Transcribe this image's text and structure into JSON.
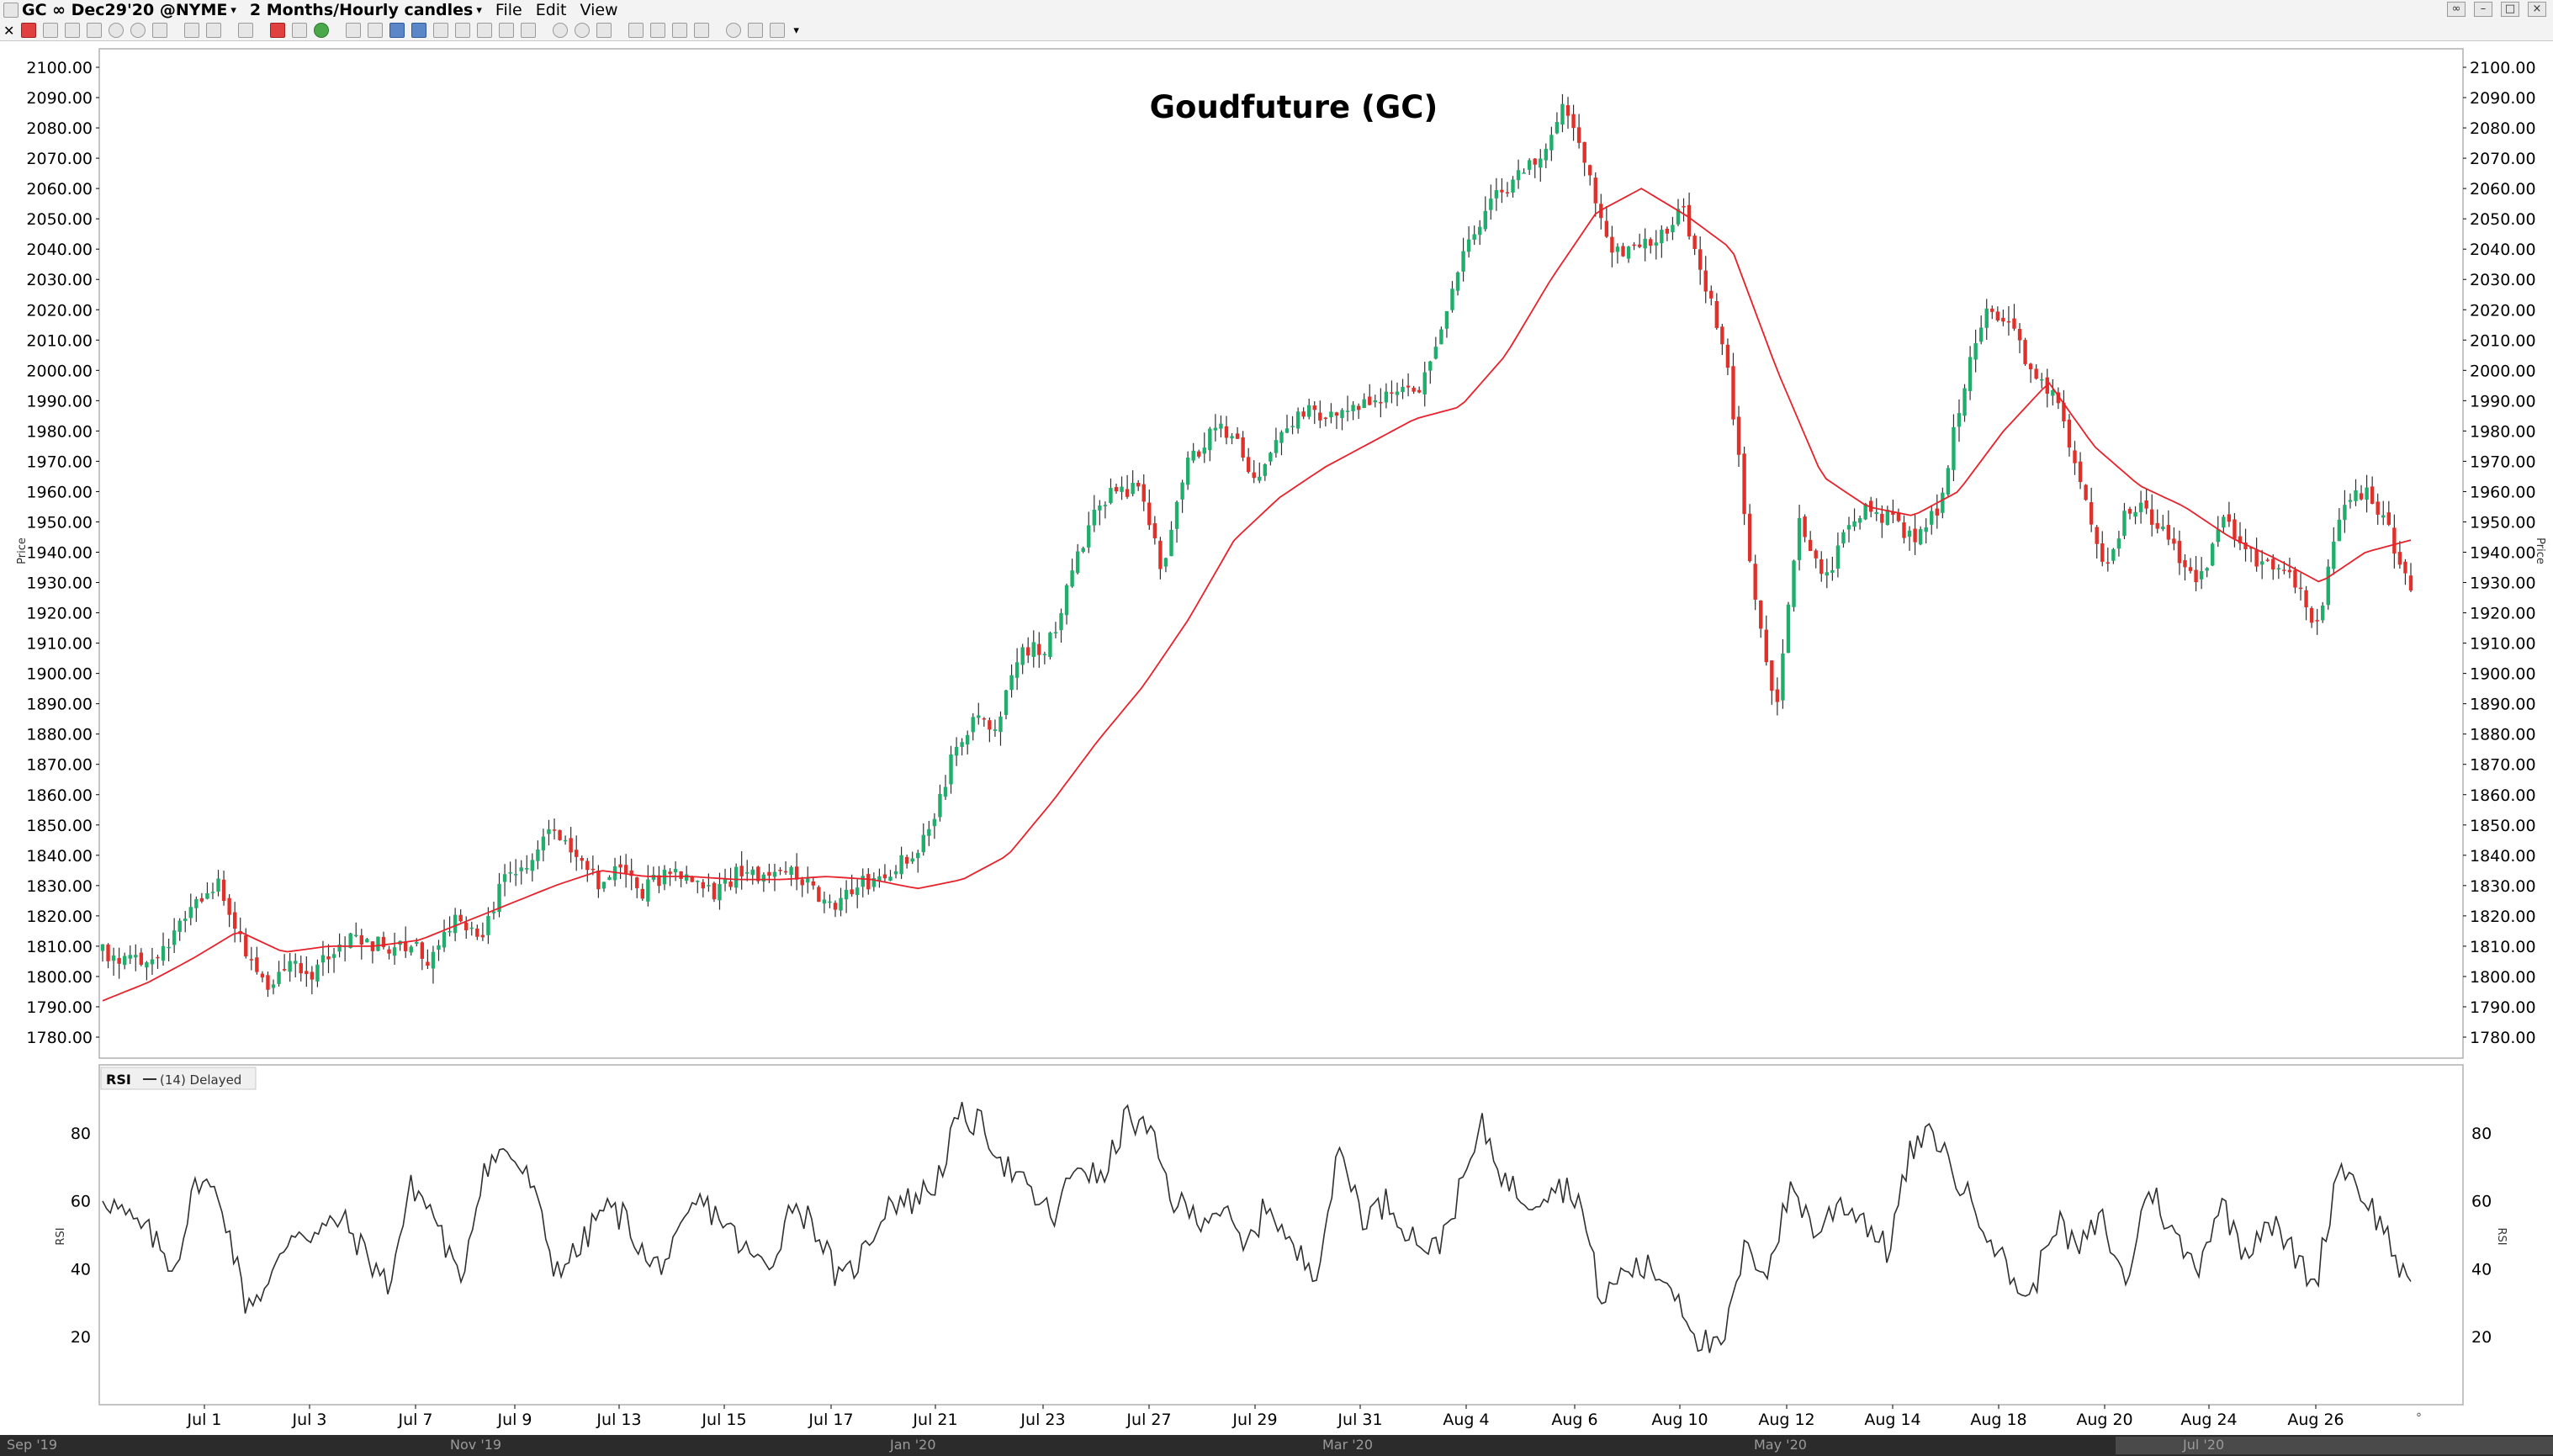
{
  "toolbar": {
    "symbol": "GC ∞ Dec29'20 @NYME",
    "interval": "2 Months/Hourly candles",
    "menu": [
      "File",
      "Edit",
      "View"
    ]
  },
  "footer_timeline": [
    "Sep '19",
    "Nov '19",
    "Jan '20",
    "Mar '20",
    "May '20",
    "Jul '20"
  ],
  "chart_data": [
    {
      "type": "candlestick",
      "title": "Goudfuture (GC)",
      "ylabel": "Price",
      "ylim": [
        1770,
        2105
      ],
      "yticks": [
        1780,
        1790,
        1800,
        1810,
        1820,
        1830,
        1840,
        1850,
        1860,
        1870,
        1880,
        1890,
        1900,
        1910,
        1920,
        1930,
        1940,
        1950,
        1960,
        1970,
        1980,
        1990,
        2000,
        2010,
        2020,
        2030,
        2040,
        2050,
        2060,
        2070,
        2080,
        2090,
        2100
      ],
      "x_tick_labels": [
        "Jul 1",
        "Jul 3",
        "Jul 7",
        "Jul 9",
        "Jul 13",
        "Jul 15",
        "Jul 17",
        "Jul 21",
        "Jul 23",
        "Jul 27",
        "Jul 29",
        "Jul 31",
        "Aug 4",
        "Aug 6",
        "Aug 10",
        "Aug 12",
        "Aug 14",
        "Aug 18",
        "Aug 20",
        "Aug 24",
        "Aug 26"
      ],
      "grid": false,
      "colors": {
        "up": "#1fae6b",
        "down": "#e0302a",
        "wick": "#303030",
        "moving_average": "#e8212a"
      },
      "price_path": [
        1808,
        1806,
        1803,
        1815,
        1826,
        1830,
        1808,
        1798,
        1804,
        1800,
        1812,
        1812,
        1810,
        1811,
        1805,
        1820,
        1810,
        1832,
        1834,
        1848,
        1843,
        1830,
        1835,
        1828,
        1835,
        1833,
        1826,
        1834,
        1834,
        1836,
        1831,
        1822,
        1830,
        1833,
        1838,
        1846,
        1870,
        1885,
        1883,
        1910,
        1905,
        1930,
        1950,
        1962,
        1960,
        1935,
        1970,
        1978,
        1981,
        1962,
        1980,
        1986,
        1984,
        1990,
        1988,
        1992,
        1993,
        2020,
        2043,
        2055,
        2064,
        2070,
        2086,
        2070,
        2038,
        2040,
        2042,
        2055,
        2030,
        2000,
        1935,
        1885,
        1950,
        1930,
        1945,
        1955,
        1950,
        1944,
        1955,
        1995,
        2020,
        2016,
        1998,
        1990,
        1960,
        1935,
        1955,
        1952,
        1940,
        1928,
        1955,
        1940,
        1935,
        1930,
        1915,
        1955,
        1960,
        1948,
        1925
      ],
      "moving_average_path": [
        1792,
        1798,
        1806,
        1815,
        1808,
        1810,
        1810,
        1812,
        1818,
        1824,
        1830,
        1835,
        1833,
        1833,
        1832,
        1832,
        1833,
        1832,
        1829,
        1832,
        1840,
        1858,
        1878,
        1896,
        1918,
        1944,
        1958,
        1968,
        1976,
        1984,
        1988,
        2005,
        2030,
        2052,
        2060,
        2051,
        2040,
        2000,
        1965,
        1955,
        1952,
        1960,
        1980,
        1996,
        1975,
        1962,
        1955,
        1945,
        1938,
        1930,
        1940,
        1944
      ],
      "annotations": []
    },
    {
      "type": "line",
      "title": "RSI",
      "legend": "(14) Delayed",
      "ylabel": "RSI",
      "ylim": [
        5,
        95
      ],
      "yticks": [
        20,
        40,
        60,
        80
      ],
      "color": "#303030",
      "values": [
        62,
        55,
        50,
        40,
        67,
        60,
        30,
        35,
        52,
        50,
        55,
        45,
        35,
        65,
        55,
        35,
        70,
        75,
        65,
        40,
        45,
        58,
        55,
        40,
        45,
        60,
        55,
        45,
        40,
        60,
        52,
        35,
        45,
        60,
        60,
        65,
        85,
        82,
        70,
        62,
        55,
        72,
        65,
        85,
        80,
        60,
        55,
        58,
        45,
        60,
        45,
        40,
        75,
        55,
        60,
        50,
        45,
        62,
        82,
        65,
        60,
        65,
        62,
        30,
        40,
        40,
        35,
        20,
        15,
        45,
        40,
        65,
        50,
        60,
        55,
        45,
        75,
        80,
        65,
        55,
        40,
        30,
        55,
        45,
        55,
        35,
        65,
        50,
        40,
        60,
        45,
        55,
        45,
        35,
        72,
        62,
        50,
        32
      ],
      "grid": false
    }
  ]
}
